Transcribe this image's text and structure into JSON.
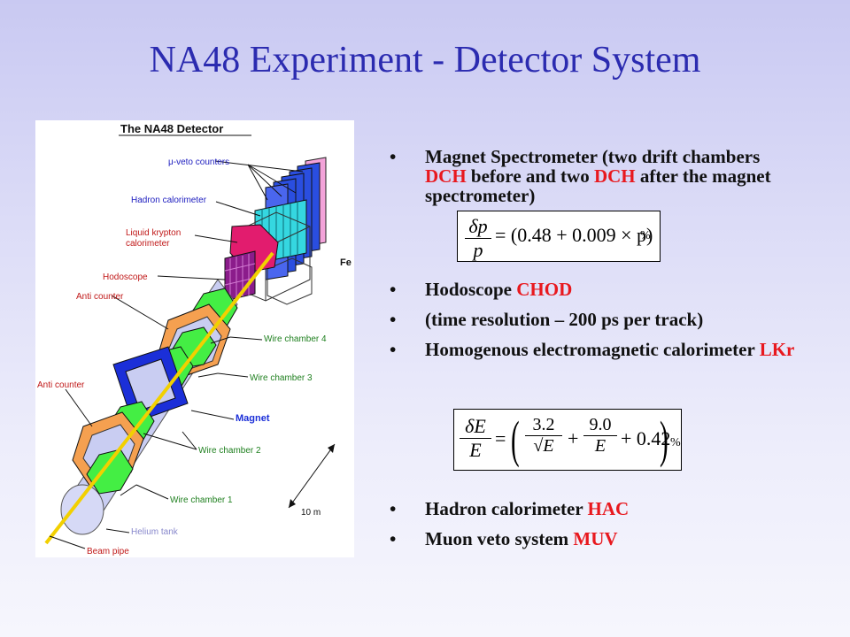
{
  "title": "NA48 Experiment - Detector System",
  "diagram": {
    "heading": "The  NA48 Detector",
    "labels": {
      "mu_veto": "μ-veto counters",
      "hadron_cal": "Hadron calorimeter",
      "lkr_line1": "Liquid krypton",
      "lkr_line2": "calorimeter",
      "fe": "Fe",
      "hodoscope": "Hodoscope",
      "anti_counter_1": "Anti counter",
      "wire_chamber_4": "Wire chamber 4",
      "wire_chamber_3": "Wire chamber 3",
      "anti_counter_2": "Anti counter",
      "magnet": "Magnet",
      "wire_chamber_2": "Wire chamber 2",
      "wire_chamber_1": "Wire chamber 1",
      "scale": "10 m",
      "helium_tank": "Helium tank",
      "beam_pipe": "Beam pipe"
    },
    "colors": {
      "veto": "#2a4ee0",
      "hadron": "#35d7e0",
      "lkr": "#e21c6e",
      "hodoscope": "#8b1c8b",
      "anti": "#f5a050",
      "chamber": "#44ee44",
      "magnet": "#1b2fd8",
      "tank": "#c9cdf2",
      "beam": "#f2d000"
    }
  },
  "bullets": [
    {
      "marker": "•",
      "segments": [
        "Magnet Spectrometer (two drift chambers ",
        "DCH",
        " before and two ",
        "DCH",
        " after the magnet spectrometer)"
      ]
    },
    {
      "marker": "•",
      "segments": [
        "Hodoscope  ",
        "CHOD"
      ]
    },
    {
      "marker": "•",
      "segments": [
        "(time resolution – 200 ps per track)"
      ]
    },
    {
      "marker": "•",
      "segments": [
        "Homogenous electromagnetic calorimeter ",
        "LKr"
      ]
    },
    {
      "marker": "•",
      "segments": [
        "Hadron calorimeter ",
        "HAC"
      ]
    },
    {
      "marker": "•",
      "segments": [
        "Muon veto system ",
        "MUV"
      ]
    }
  ],
  "formula1": {
    "numerator": "δp",
    "denominator": "p",
    "rhs": "= (0.48 + 0.009 × p)",
    "unit": "%"
  },
  "formula2": {
    "numerator": "δE",
    "denominator": "E",
    "equals": "=",
    "term1_num": "3.2",
    "term1_den": "√E",
    "plus1": "+",
    "term2_num": "9.0",
    "term2_den": "E",
    "tail": "+ 0.42",
    "unit": "%"
  }
}
